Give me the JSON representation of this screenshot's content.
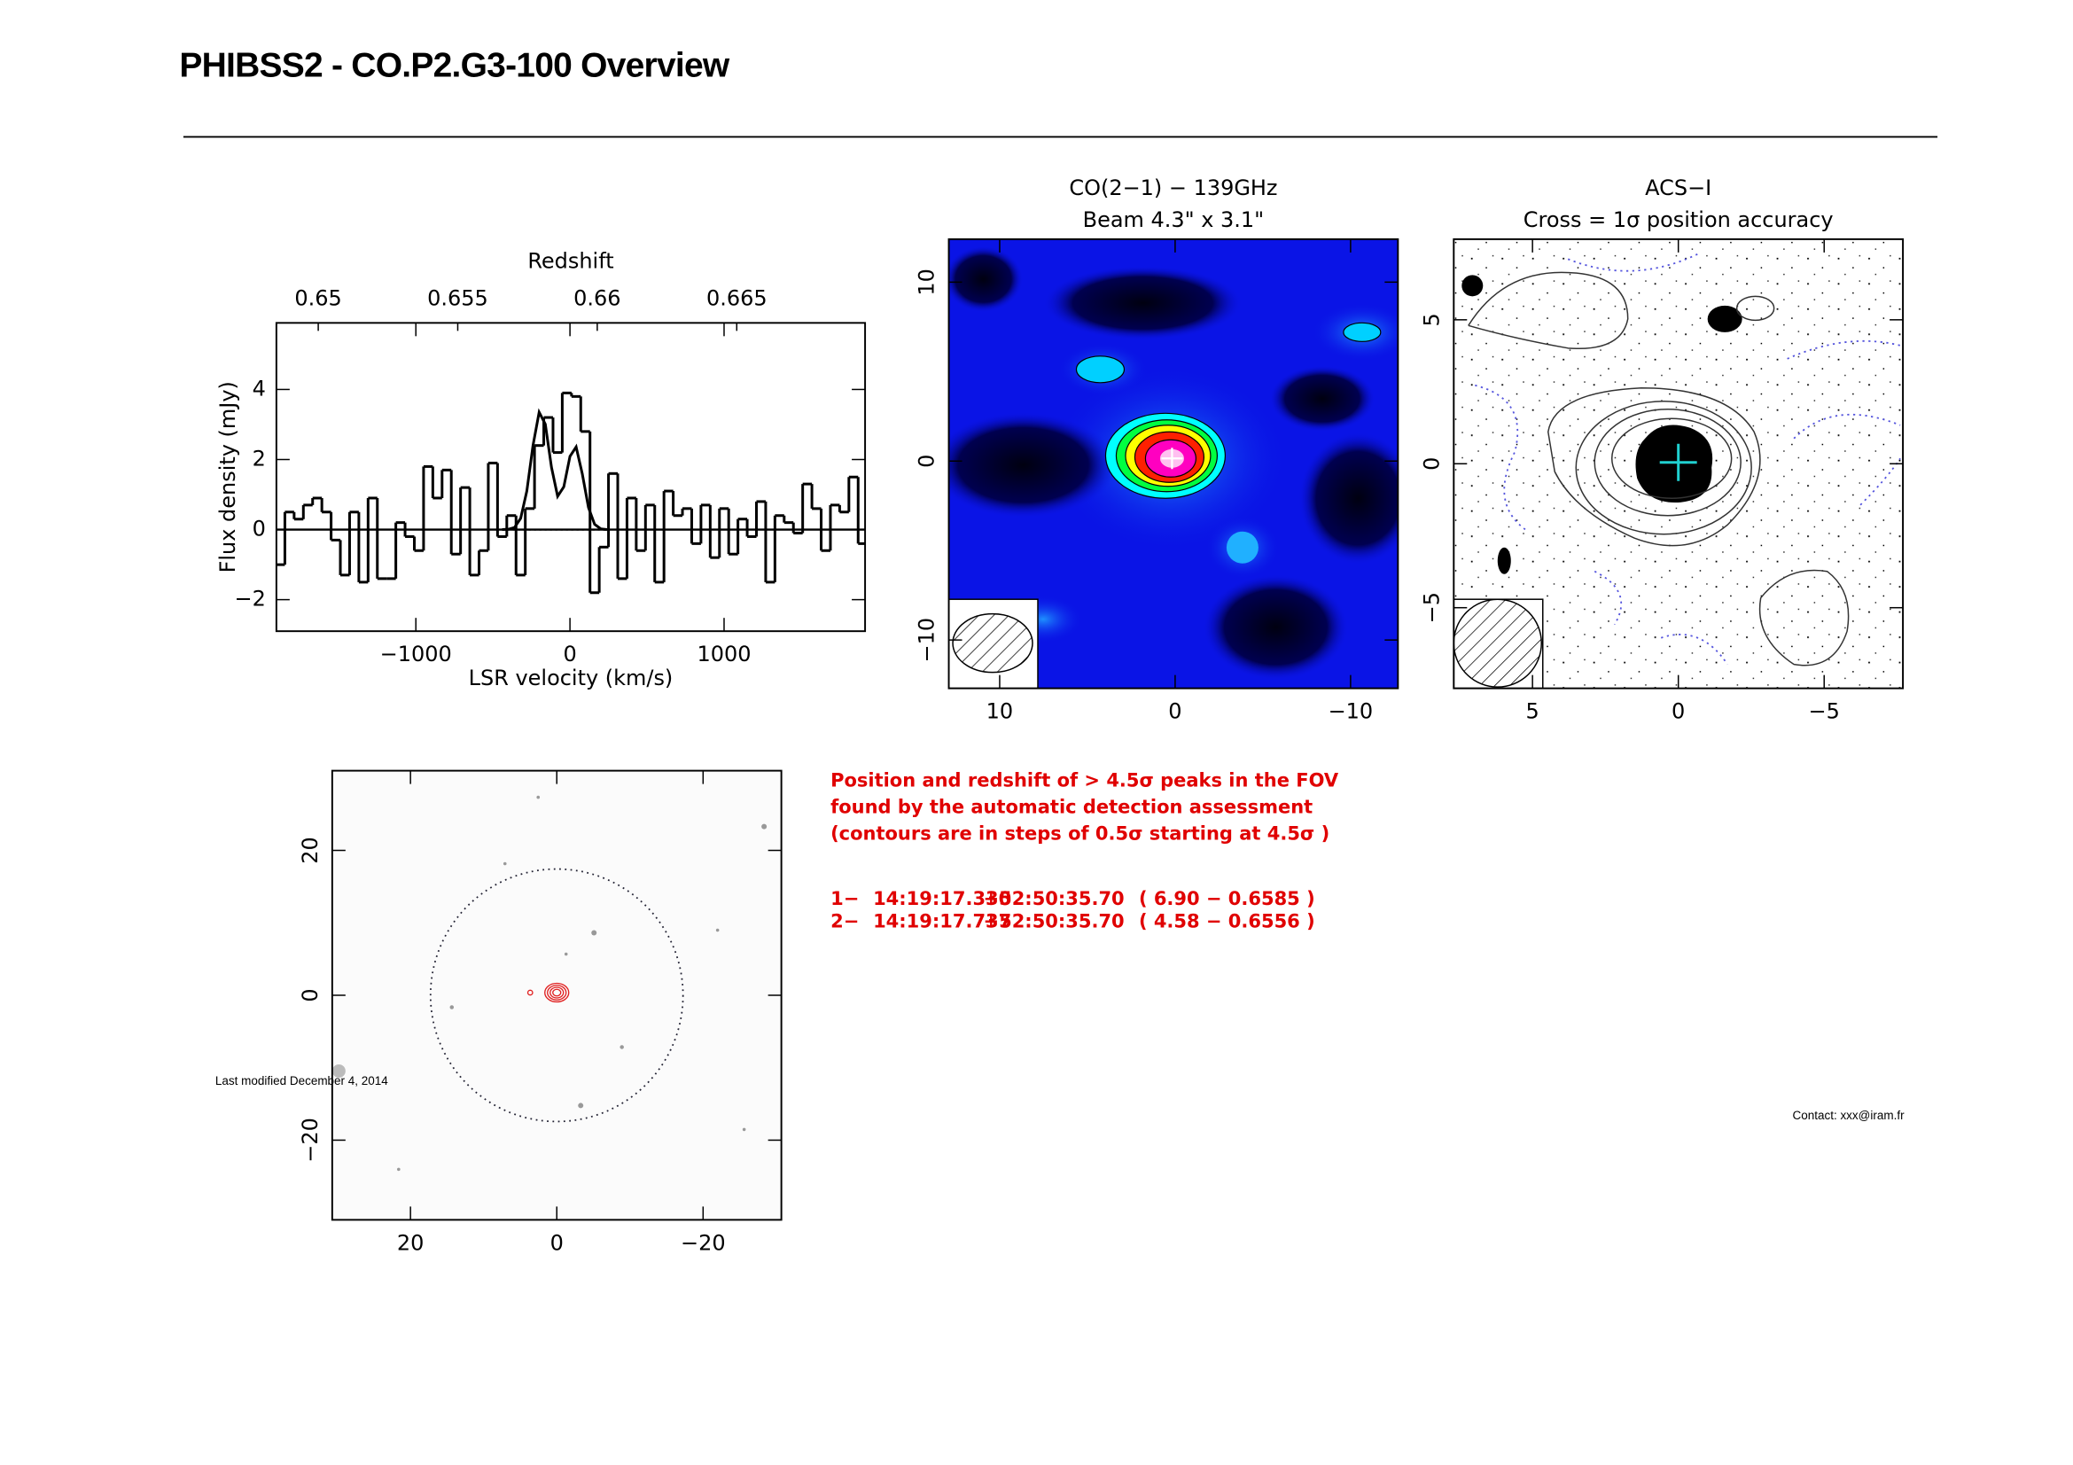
{
  "header": {
    "title": "PHIBSS2 - CO.P2.G3-100 Overview"
  },
  "chart_data": [
    {
      "type": "spectrum",
      "xlabel": "LSR velocity (km/s)",
      "ylabel": "Flux density (mJy)",
      "x2label": "Redshift",
      "xlim": [
        -1905,
        1915
      ],
      "ylim": [
        -2.9,
        5.9
      ],
      "x2lim": [
        0.6485,
        0.6696
      ],
      "xticks": [
        {
          "value": -1000,
          "label": "−1000"
        },
        0,
        1000
      ],
      "yticks": [
        {
          "value": -2,
          "label": "−2"
        },
        0,
        2,
        4
      ],
      "x2ticks": [
        0.65,
        0.655,
        0.66,
        0.665
      ],
      "series": [
        {
          "style": "steps",
          "color": "#000000",
          "x": [
            -1880,
            -1820,
            -1760,
            -1700,
            -1640,
            -1580,
            -1520,
            -1460,
            -1400,
            -1340,
            -1280,
            -1220,
            -1160,
            -1100,
            -1040,
            -980,
            -920,
            -860,
            -800,
            -740,
            -680,
            -620,
            -560,
            -500,
            -440,
            -380,
            -320,
            -260,
            -200,
            -140,
            -80,
            -20,
            40,
            100,
            160,
            220,
            280,
            340,
            400,
            460,
            520,
            580,
            640,
            700,
            760,
            820,
            880,
            940,
            1000,
            1060,
            1120,
            1180,
            1240,
            1300,
            1360,
            1420,
            1480,
            1540,
            1600,
            1660,
            1720,
            1780,
            1840,
            1900
          ],
          "values": [
            -1.0,
            0.5,
            0.3,
            0.7,
            0.9,
            0.5,
            -0.3,
            -1.3,
            0.5,
            -1.5,
            0.9,
            -1.4,
            -1.4,
            0.2,
            -0.2,
            -0.6,
            1.8,
            0.9,
            1.7,
            -0.7,
            1.2,
            -1.3,
            -0.6,
            1.9,
            -0.2,
            0.4,
            -1.3,
            0.6,
            2.4,
            3.2,
            2.2,
            3.9,
            3.8,
            2.8,
            -1.8,
            -0.5,
            1.6,
            -1.4,
            0.9,
            -0.6,
            0.7,
            -1.5,
            1.1,
            0.4,
            0.6,
            -0.4,
            0.7,
            -0.8,
            0.6,
            -0.7,
            0.3,
            -0.2,
            0.8,
            -1.5,
            0.4,
            0.2,
            -0.1,
            1.3,
            0.6,
            -0.6,
            0.7,
            0.5,
            1.5,
            -0.4
          ]
        },
        {
          "style": "line",
          "color": "#000000",
          "x": [
            -440,
            -400,
            -360,
            -320,
            -280,
            -240,
            -200,
            -160,
            -120,
            -80,
            -40,
            0,
            40,
            80,
            120,
            160,
            200,
            240
          ],
          "values": [
            0.0,
            0.01,
            0.06,
            0.32,
            1.1,
            2.4,
            3.35,
            3.01,
            1.78,
            0.95,
            1.22,
            2.09,
            2.36,
            1.59,
            0.63,
            0.15,
            0.02,
            0.0
          ]
        }
      ]
    },
    {
      "type": "image",
      "title": "CO(2−1) − 139GHz",
      "subtitle": "Beam 4.3\" x 3.1\"",
      "xlim": [
        12.9,
        -12.7
      ],
      "ylim": [
        -12.7,
        12.4
      ],
      "xticks": [
        10,
        0,
        {
          "value": -10,
          "label": "−10"
        }
      ],
      "yticks": [
        {
          "value": -10,
          "label": "−10"
        },
        0,
        10
      ]
    },
    {
      "type": "image",
      "title": "ACS−I",
      "subtitle": "Cross = 1σ position accuracy",
      "xlim": [
        7.7,
        -7.7
      ],
      "ylim": [
        -7.8,
        7.8
      ],
      "xticks": [
        5,
        0,
        {
          "value": -5,
          "label": "−5"
        }
      ],
      "yticks": [
        {
          "value": -5,
          "label": "−5"
        },
        0,
        5
      ]
    },
    {
      "type": "image",
      "xlim": [
        30.7,
        -30.7
      ],
      "ylim": [
        -31.0,
        31.0
      ],
      "xticks": [
        20,
        0,
        {
          "value": -20,
          "label": "−20"
        }
      ],
      "yticks": [
        {
          "value": -20,
          "label": "−20"
        },
        0,
        20
      ]
    }
  ],
  "notes": {
    "lines": [
      "Position and redshift of > 4.5σ peaks in the FOV",
      "found by the automatic detection assessment",
      "(contours are in steps of 0.5σ starting at 4.5σ )"
    ],
    "detections": [
      [
        "1−",
        "14:19:17.330",
        "+52:50:35.70",
        "( 6.90 − 0.6585 )"
      ],
      [
        "2−",
        "14:19:17.737",
        "+52:50:35.70",
        "( 4.58 − 0.6556 )"
      ]
    ]
  },
  "footer": {
    "modified": "Last modified December 4, 2014",
    "contact": "Contact: xxx@iram.fr"
  }
}
